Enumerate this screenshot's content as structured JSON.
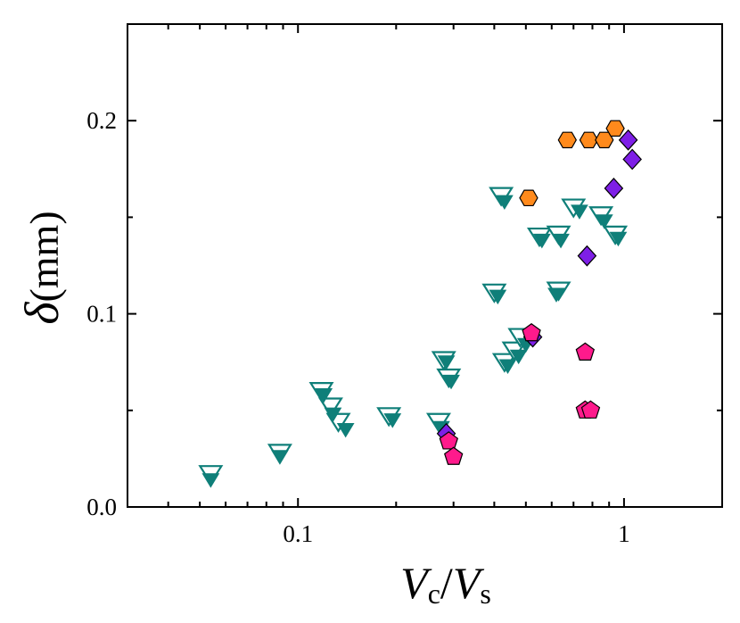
{
  "chart_data": {
    "type": "scatter",
    "title": "",
    "xscale": "log",
    "xlim": [
      0.03,
      2.0
    ],
    "ylim": [
      0.0,
      0.25
    ],
    "xlabel": {
      "main1": "V",
      "sub1": "c",
      "slash": "/",
      "main2": "V",
      "sub2": "s"
    },
    "ylabel": {
      "symbol": "δ",
      "units": "(mm)"
    },
    "x_ticks": [
      {
        "value": 0.1,
        "label": "0.1"
      },
      {
        "value": 1,
        "label": "1"
      }
    ],
    "y_ticks": [
      {
        "value": 0.0,
        "label": "0.0"
      },
      {
        "value": 0.1,
        "label": "0.1"
      },
      {
        "value": 0.2,
        "label": "0.2"
      }
    ],
    "legend": "none",
    "grid": false,
    "colors": {
      "teal": "#0f7f79",
      "orange": "#ff8a1c",
      "violet": "#7e1fe6",
      "pink": "#ff1a8c",
      "edge": "#000000"
    },
    "series": [
      {
        "name": "open-triangles",
        "marker": "triangle-down-open",
        "color": "#0f7f79",
        "points": [
          [
            0.054,
            0.017
          ],
          [
            0.088,
            0.028
          ],
          [
            0.118,
            0.06
          ],
          [
            0.126,
            0.052
          ],
          [
            0.133,
            0.044
          ],
          [
            0.19,
            0.047
          ],
          [
            0.27,
            0.044
          ],
          [
            0.28,
            0.076
          ],
          [
            0.29,
            0.067
          ],
          [
            0.4,
            0.111
          ],
          [
            0.42,
            0.161
          ],
          [
            0.43,
            0.075
          ],
          [
            0.46,
            0.081
          ],
          [
            0.48,
            0.088
          ],
          [
            0.55,
            0.14
          ],
          [
            0.63,
            0.112
          ],
          [
            0.63,
            0.141
          ],
          [
            0.7,
            0.155
          ],
          [
            0.85,
            0.151
          ],
          [
            0.94,
            0.141
          ]
        ]
      },
      {
        "name": "filled-triangles",
        "marker": "triangle-down-filled",
        "color": "#0f7f79",
        "points": [
          [
            0.054,
            0.014
          ],
          [
            0.088,
            0.026
          ],
          [
            0.12,
            0.058
          ],
          [
            0.128,
            0.048
          ],
          [
            0.14,
            0.04
          ],
          [
            0.195,
            0.045
          ],
          [
            0.275,
            0.041
          ],
          [
            0.285,
            0.075
          ],
          [
            0.295,
            0.065
          ],
          [
            0.41,
            0.109
          ],
          [
            0.43,
            0.158
          ],
          [
            0.44,
            0.073
          ],
          [
            0.475,
            0.078
          ],
          [
            0.5,
            0.084
          ],
          [
            0.56,
            0.138
          ],
          [
            0.62,
            0.11
          ],
          [
            0.64,
            0.138
          ],
          [
            0.73,
            0.153
          ],
          [
            0.87,
            0.148
          ],
          [
            0.96,
            0.139
          ]
        ]
      },
      {
        "name": "hexagons",
        "marker": "hexagon",
        "color": "#ff8a1c",
        "points": [
          [
            0.51,
            0.16
          ],
          [
            0.67,
            0.19
          ],
          [
            0.78,
            0.19
          ],
          [
            0.87,
            0.19
          ],
          [
            0.94,
            0.196
          ]
        ]
      },
      {
        "name": "diamonds",
        "marker": "diamond",
        "color": "#7e1fe6",
        "points": [
          [
            0.285,
            0.038
          ],
          [
            0.525,
            0.088
          ],
          [
            0.77,
            0.13
          ],
          [
            0.93,
            0.165
          ],
          [
            1.03,
            0.19
          ],
          [
            1.06,
            0.18
          ]
        ]
      },
      {
        "name": "pentagons",
        "marker": "pentagon",
        "color": "#ff1a8c",
        "points": [
          [
            0.29,
            0.034
          ],
          [
            0.3,
            0.026
          ],
          [
            0.52,
            0.09
          ],
          [
            0.76,
            0.08
          ],
          [
            0.76,
            0.05
          ],
          [
            0.79,
            0.05
          ]
        ]
      }
    ]
  }
}
